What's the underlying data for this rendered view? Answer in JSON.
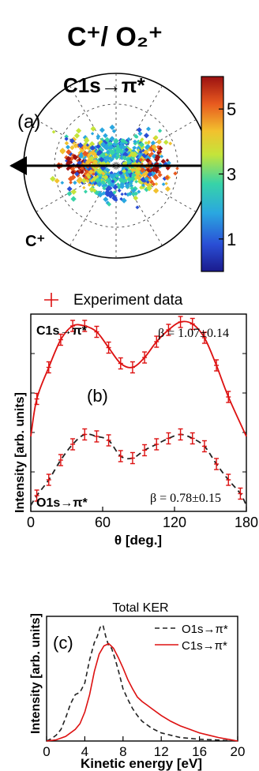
{
  "header": {
    "title": "C⁺/ O₂⁺"
  },
  "chart_data": [
    {
      "panel": "(a)",
      "type": "heatmap",
      "title": "C1s→π*",
      "fragment_label": "C⁺",
      "colorbar": {
        "ticks": [
          1,
          3,
          5
        ],
        "range": [
          0,
          6
        ],
        "colors": [
          "#1a1a8c",
          "#2a4fd6",
          "#2aa7e0",
          "#37d3a8",
          "#c4e43a",
          "#f2c12e",
          "#e85a1f",
          "#9b1111"
        ]
      }
    },
    {
      "panel": "(b)",
      "type": "line",
      "xlabel": "θ [deg.]",
      "ylabel": "Intensity [arb. units]",
      "xlim": [
        0,
        180
      ],
      "xticks": [
        0,
        60,
        120,
        180
      ],
      "legend": {
        "label": "Experiment data",
        "position": "top"
      },
      "series": [
        {
          "name": "C1s→π*",
          "annotation": "β = 1.07±0.14",
          "color": "#dd1111",
          "style": "solid",
          "x": [
            5,
            15,
            25,
            35,
            45,
            55,
            65,
            75,
            85,
            95,
            105,
            115,
            125,
            135,
            145,
            155,
            165
          ],
          "y": [
            0.57,
            0.73,
            0.87,
            0.94,
            0.94,
            0.91,
            0.83,
            0.75,
            0.73,
            0.78,
            0.86,
            0.92,
            0.96,
            0.95,
            0.88,
            0.74,
            0.58
          ]
        },
        {
          "name": "O1s→π*",
          "annotation": "β = 0.78±0.15",
          "color": "#222222",
          "style": "dashed",
          "x": [
            5,
            15,
            25,
            35,
            45,
            55,
            65,
            75,
            85,
            95,
            105,
            115,
            125,
            135,
            145,
            155,
            165,
            175
          ],
          "y": [
            0.08,
            0.16,
            0.26,
            0.34,
            0.39,
            0.38,
            0.36,
            0.28,
            0.27,
            0.31,
            0.34,
            0.37,
            0.39,
            0.37,
            0.33,
            0.24,
            0.16,
            0.09
          ]
        }
      ]
    },
    {
      "panel": "(c)",
      "type": "line",
      "title": "Total KER",
      "xlabel": "Kinetic energy [eV]",
      "ylabel": "Intensity [arb. units]",
      "xlim": [
        0,
        20
      ],
      "xticks": [
        0,
        4,
        8,
        12,
        16,
        20
      ],
      "legend_position": "top-right",
      "series": [
        {
          "name": "O1s→π*",
          "color": "#222222",
          "style": "dashed",
          "x": [
            0,
            0.5,
            1,
            1.5,
            2,
            2.5,
            3,
            3.5,
            4,
            4.5,
            5,
            5.3,
            5.6,
            5.9,
            6.2,
            6.5,
            6.8,
            7.2,
            7.6,
            8,
            8.5,
            9,
            9.5,
            10,
            11,
            12,
            13,
            14,
            16,
            18,
            20
          ],
          "y": [
            0.0,
            0.02,
            0.05,
            0.1,
            0.2,
            0.32,
            0.4,
            0.42,
            0.5,
            0.7,
            0.85,
            0.9,
            0.98,
            1.0,
            0.9,
            0.82,
            0.8,
            0.7,
            0.58,
            0.45,
            0.36,
            0.28,
            0.22,
            0.17,
            0.11,
            0.07,
            0.05,
            0.03,
            0.015,
            0.008,
            0.0
          ]
        },
        {
          "name": "C1s→π*",
          "color": "#dd1111",
          "style": "solid",
          "x": [
            0,
            1,
            2,
            3,
            3.5,
            4,
            4.5,
            5,
            5.5,
            6,
            6.5,
            7,
            7.5,
            8,
            8.5,
            9,
            9.5,
            10,
            10.5,
            11,
            12,
            13,
            14,
            15,
            16,
            17,
            18,
            19,
            20
          ],
          "y": [
            0.0,
            0.01,
            0.04,
            0.1,
            0.15,
            0.25,
            0.4,
            0.6,
            0.75,
            0.82,
            0.84,
            0.8,
            0.72,
            0.63,
            0.53,
            0.45,
            0.38,
            0.34,
            0.31,
            0.28,
            0.22,
            0.17,
            0.13,
            0.1,
            0.07,
            0.05,
            0.03,
            0.015,
            0.0
          ]
        }
      ]
    }
  ]
}
